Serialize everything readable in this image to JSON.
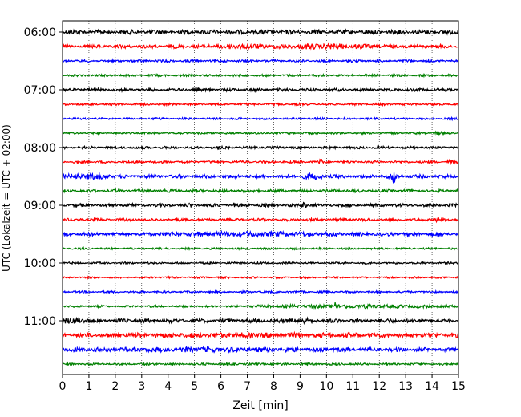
{
  "chart_data": {
    "type": "line",
    "subtype": "helicorder",
    "xlabel": "Zeit  [min]",
    "ylabel": "UTC (Lokalzeit = UTC + 02:00)",
    "xlim": [
      0,
      15
    ],
    "x_ticks": [
      "0",
      "1",
      "2",
      "3",
      "4",
      "5",
      "6",
      "7",
      "8",
      "9",
      "10",
      "11",
      "12",
      "13",
      "14",
      "15"
    ],
    "y_tick_labels": [
      "06:00",
      "07:00",
      "08:00",
      "09:00",
      "10:00",
      "11:00"
    ],
    "grid": "vertical dotted",
    "trace_colors": [
      "#000000",
      "#ff0000",
      "#0000ff",
      "#008000"
    ],
    "trace_interval_minutes": 15,
    "traces": [
      {
        "start": "06:00",
        "color": "#000000"
      },
      {
        "start": "06:15",
        "color": "#ff0000"
      },
      {
        "start": "06:30",
        "color": "#0000ff"
      },
      {
        "start": "06:45",
        "color": "#008000"
      },
      {
        "start": "07:00",
        "color": "#000000"
      },
      {
        "start": "07:15",
        "color": "#ff0000"
      },
      {
        "start": "07:30",
        "color": "#0000ff"
      },
      {
        "start": "07:45",
        "color": "#008000"
      },
      {
        "start": "08:00",
        "color": "#000000"
      },
      {
        "start": "08:15",
        "color": "#ff0000"
      },
      {
        "start": "08:30",
        "color": "#0000ff"
      },
      {
        "start": "08:45",
        "color": "#008000"
      },
      {
        "start": "09:00",
        "color": "#000000"
      },
      {
        "start": "09:15",
        "color": "#ff0000"
      },
      {
        "start": "09:30",
        "color": "#0000ff"
      },
      {
        "start": "09:45",
        "color": "#008000"
      },
      {
        "start": "10:00",
        "color": "#000000"
      },
      {
        "start": "10:15",
        "color": "#ff0000"
      },
      {
        "start": "10:30",
        "color": "#0000ff"
      },
      {
        "start": "10:45",
        "color": "#008000"
      },
      {
        "start": "11:00",
        "color": "#000000"
      },
      {
        "start": "11:15",
        "color": "#ff0000"
      },
      {
        "start": "11:30",
        "color": "#0000ff"
      },
      {
        "start": "11:45",
        "color": "#008000"
      }
    ]
  }
}
